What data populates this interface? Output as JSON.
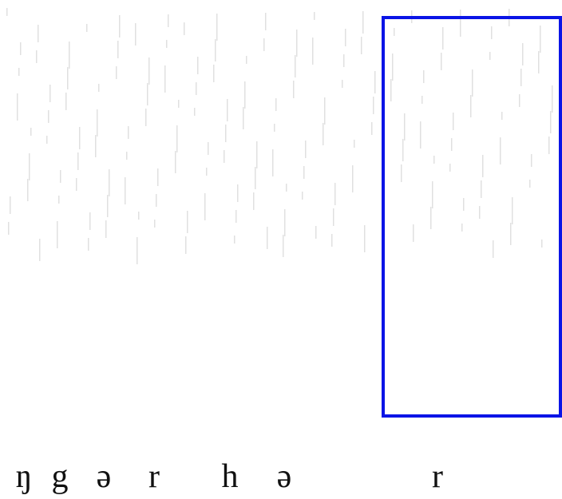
{
  "labels": [
    "ŋ",
    "g",
    "ə",
    "r",
    "h",
    "ə",
    "r"
  ]
}
